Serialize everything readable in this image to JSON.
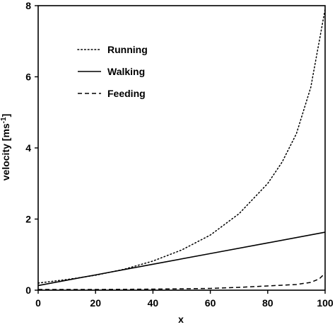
{
  "chart_data": {
    "type": "line",
    "title": "",
    "xlabel": "x",
    "ylabel": "velocity [ms",
    "ylabel_superscript": "-1",
    "ylabel_suffix": "]",
    "xlim": [
      0,
      100
    ],
    "ylim": [
      0,
      8
    ],
    "xticks": [
      0,
      20,
      40,
      60,
      80,
      100
    ],
    "yticks": [
      0,
      2,
      4,
      6,
      8
    ],
    "grid": false,
    "legend_position": "top-left",
    "series": [
      {
        "name": "Running",
        "style": "dotted",
        "x": [
          0,
          10,
          20,
          30,
          40,
          50,
          60,
          70,
          80,
          85,
          90,
          95,
          100
        ],
        "y": [
          0.2,
          0.3,
          0.42,
          0.59,
          0.82,
          1.13,
          1.55,
          2.15,
          3.0,
          3.6,
          4.4,
          5.7,
          7.9
        ]
      },
      {
        "name": "Walking",
        "style": "solid",
        "x": [
          0,
          20,
          40,
          60,
          80,
          100
        ],
        "y": [
          0.13,
          0.43,
          0.73,
          1.03,
          1.33,
          1.63
        ]
      },
      {
        "name": "Feeding",
        "style": "dashed",
        "x": [
          0,
          20,
          40,
          60,
          70,
          80,
          85,
          90,
          95,
          98,
          100
        ],
        "y": [
          0.02,
          0.02,
          0.03,
          0.05,
          0.08,
          0.12,
          0.14,
          0.16,
          0.22,
          0.32,
          0.48
        ]
      }
    ],
    "colors": {
      "line": "#000000",
      "axis": "#000000",
      "background": "#ffffff"
    }
  }
}
